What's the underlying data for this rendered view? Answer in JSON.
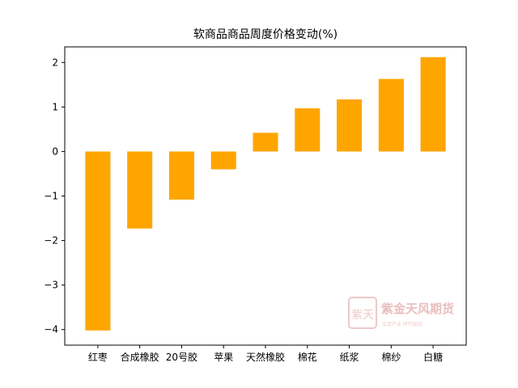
{
  "chart_data": {
    "type": "bar",
    "title": "软商品商品周度价格变动(%)",
    "xlabel": "",
    "ylabel": "",
    "categories": [
      "红枣",
      "合成橡胶",
      "20号胶",
      "苹果",
      "天然橡胶",
      "棉花",
      "纸浆",
      "棉纱",
      "白糖"
    ],
    "values": [
      -4.02,
      -1.73,
      -1.08,
      -0.4,
      0.42,
      0.97,
      1.17,
      1.63,
      2.12
    ],
    "ylim": [
      -4.35,
      2.35
    ],
    "yticks": [
      2,
      1,
      0,
      -1,
      -2,
      -3,
      -4
    ],
    "ytick_labels": [
      "2",
      "1",
      "0",
      "−1",
      "−2",
      "−3",
      "−4"
    ],
    "bar_color": "#FFA500",
    "grid": false,
    "legend": "none"
  },
  "watermark": {
    "seal_text": "紫天",
    "brand": "紫金天风期货",
    "tagline": "立足产业 研究驱动",
    "color": "#e8b7b7"
  }
}
